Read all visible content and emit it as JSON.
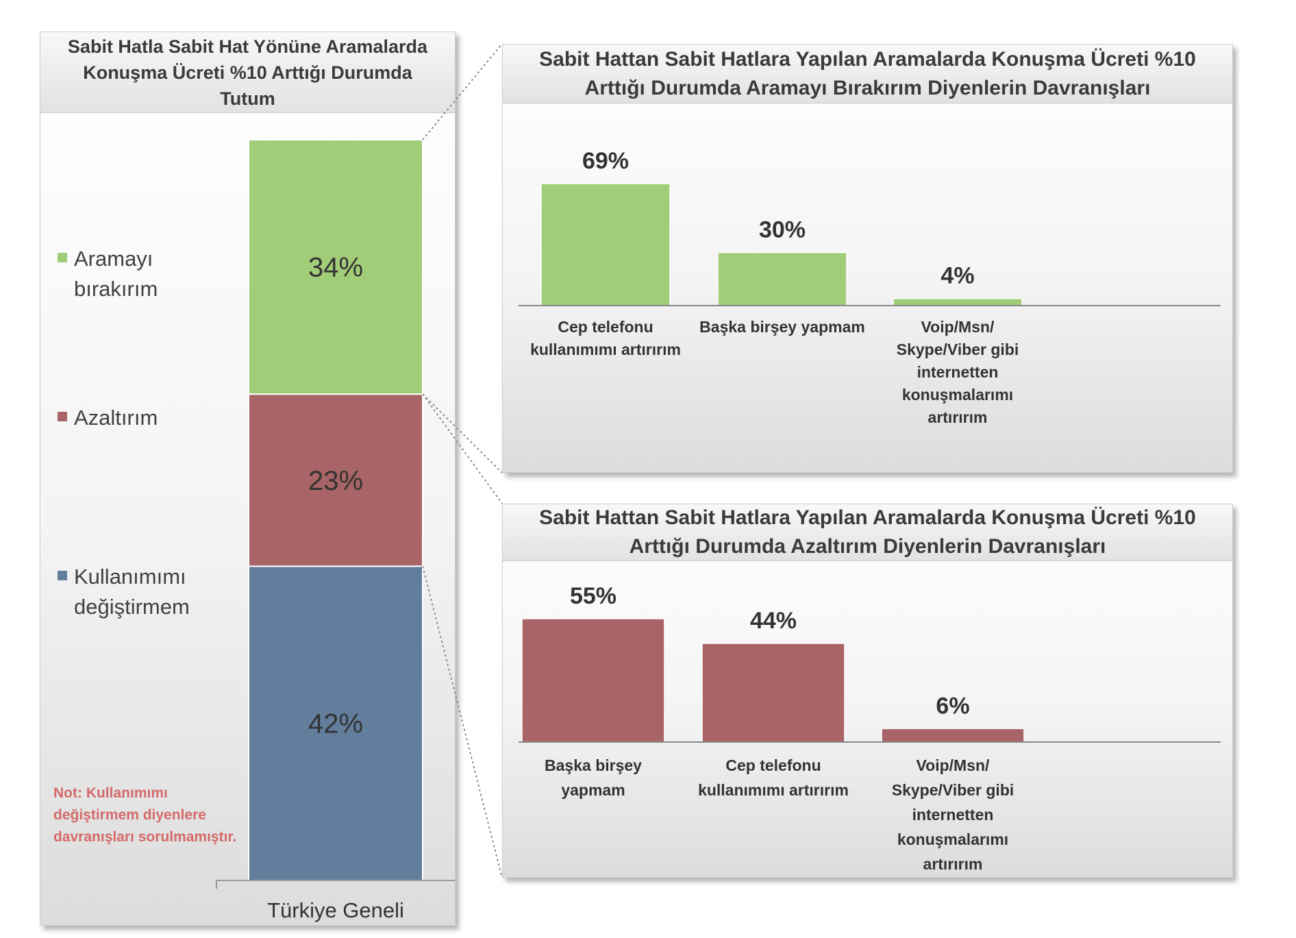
{
  "colors": {
    "green": "#a2cd78",
    "red": "#a86466",
    "blue": "#627e9c",
    "note": "#d46a6a"
  },
  "left_chart": {
    "title": "Sabit Hatla Sabit Hat Yönüne Aramalarda Konuşma Ücreti %10 Arttığı Durumda Tutum",
    "legend": [
      {
        "label_lines": [
          "Aramayı",
          "bırakırım"
        ],
        "color": "#a2cd78"
      },
      {
        "label_lines": [
          "Azaltırım"
        ],
        "color": "#a86466"
      },
      {
        "label_lines": [
          "Kullanımımı",
          "değiştirmem"
        ],
        "color": "#627e9c"
      }
    ],
    "note": "Not: Kullanımımı değiştirmem diyenlere davranışları sorulmamıştır."
  },
  "top_chart": {
    "title_lines": [
      "Sabit Hattan Sabit Hatlara Yapılan Aramalarda Konuşma Ücreti %10",
      "Arttığı Durumda Aramayı Bırakırım Diyenlerin Davranışları"
    ]
  },
  "bottom_chart": {
    "title_lines": [
      "Sabit Hattan Sabit Hatlara Yapılan Aramalarda Konuşma Ücreti %10",
      "Arttığı Durumda Azaltırım Diyenlerin Davranışları"
    ]
  },
  "chart_data": [
    {
      "type": "bar",
      "stacked": true,
      "title": "Sabit Hatla Sabit Hat Yönüne Aramalarda Konuşma Ücreti %10 Arttığı Durumda Tutum",
      "categories": [
        "Türkiye Geneli"
      ],
      "series": [
        {
          "name": "Kullanımımı değiştirmem",
          "values": [
            42
          ],
          "label": "42%",
          "color": "#627e9c"
        },
        {
          "name": "Azaltırım",
          "values": [
            23
          ],
          "label": "23%",
          "color": "#a86466"
        },
        {
          "name": "Aramayı bırakırım",
          "values": [
            34
          ],
          "label": "34%",
          "color": "#a2cd78"
        }
      ],
      "ylim": [
        0,
        99
      ]
    },
    {
      "type": "bar",
      "title": "Sabit Hattan Sabit Hatlara Yapılan Aramalarda Konuşma Ücreti %10 Arttığı Durumda Aramayı Bırakırım Diyenlerin Davranışları",
      "categories": [
        [
          "Cep telefonu",
          "kullanımımı artırırım"
        ],
        [
          "Başka birşey yapmam"
        ],
        [
          "Voip/Msn/",
          "Skype/Viber gibi",
          "internetten",
          "konuşmalarımı",
          "artırırım"
        ]
      ],
      "values": [
        69,
        30,
        4
      ],
      "labels": [
        "69%",
        "30%",
        "4%"
      ],
      "color": "#a2cd78",
      "ylim": [
        0,
        69
      ]
    },
    {
      "type": "bar",
      "title": "Sabit Hattan Sabit Hatlara Yapılan Aramalarda Konuşma Ücreti %10 Arttığı Durumda Azaltırım Diyenlerin Davranışları",
      "categories": [
        [
          "Başka birşey",
          "yapmam"
        ],
        [
          "Cep telefonu",
          "kullanımımı artırırım"
        ],
        [
          "Voip/Msn/",
          "Skype/Viber gibi",
          "internetten",
          "konuşmalarımı",
          "artırırım"
        ]
      ],
      "values": [
        55,
        44,
        6
      ],
      "labels": [
        "55%",
        "44%",
        "6%"
      ],
      "color": "#a86466",
      "ylim": [
        0,
        55
      ]
    }
  ]
}
